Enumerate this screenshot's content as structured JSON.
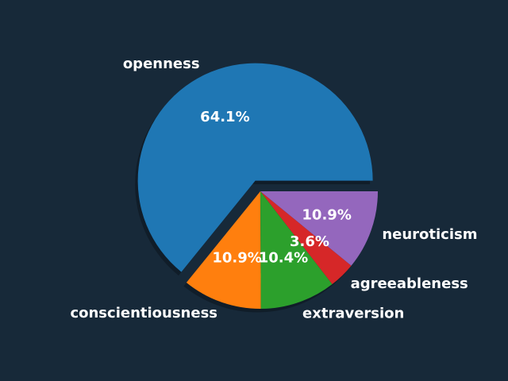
{
  "colors": {
    "background": "#172939"
  },
  "chart_data": {
    "type": "pie",
    "title": "",
    "exploded": [
      "openness"
    ],
    "shadow": true,
    "slices": [
      {
        "label": "openness",
        "value": 64.1,
        "pct_label": "64.1%",
        "color": "#1f77b4"
      },
      {
        "label": "conscientiousness",
        "value": 10.9,
        "pct_label": "10.9%",
        "color": "#ff7f0e"
      },
      {
        "label": "extraversion",
        "value": 10.4,
        "pct_label": "10.4%",
        "color": "#2ca02c"
      },
      {
        "label": "agreeableness",
        "value": 3.6,
        "pct_label": "3.6%",
        "color": "#d62728"
      },
      {
        "label": "neuroticism",
        "value": 10.9,
        "pct_label": "10.9%",
        "color": "#9467bd"
      }
    ]
  }
}
